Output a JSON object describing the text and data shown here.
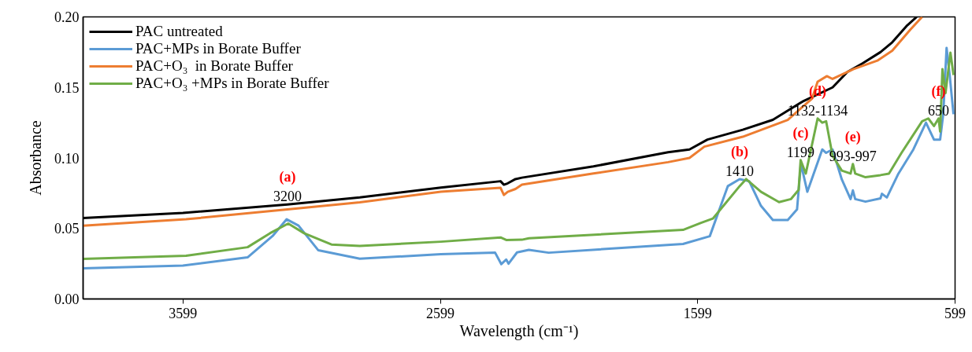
{
  "chart_data": {
    "type": "line",
    "xlabel": "Wavelength (cm⁻¹)",
    "ylabel": "Absorbance",
    "xlim": [
      3987,
      599
    ],
    "ylim": [
      0,
      0.2
    ],
    "xticks": [
      3599,
      2599,
      1599,
      599
    ],
    "yticks": [
      {
        "value": 0,
        "label": "0.00"
      },
      {
        "value": 0.05,
        "label": "0.05"
      },
      {
        "value": 0.1,
        "label": "0.10"
      },
      {
        "value": 0.15,
        "label": "0.15"
      },
      {
        "value": 0.2,
        "label": "0.20"
      }
    ],
    "grid": false,
    "legend": "top left",
    "marker": "none",
    "line_style": "solid",
    "series": [
      {
        "name": "PAC untreated",
        "color": "#000000",
        "x": [
          3987,
          3599,
          3193,
          2912,
          2597,
          2365,
          2352,
          2337,
          2307,
          2282,
          2004,
          1714,
          1631,
          1561,
          1424,
          1307,
          1191,
          1075,
          1017,
          959,
          889,
          843,
          785,
          748
        ],
        "values": [
          0.0574,
          0.061,
          0.067,
          0.072,
          0.079,
          0.0835,
          0.081,
          0.082,
          0.085,
          0.086,
          0.094,
          0.104,
          0.106,
          0.113,
          0.12,
          0.127,
          0.14,
          0.15,
          0.161,
          0.167,
          0.175,
          0.182,
          0.194,
          0.2
        ]
      },
      {
        "name": "PAC+MPs in Borate Buffer",
        "color": "#5b9bd5",
        "x": [
          3987,
          3599,
          3348,
          3251,
          3196,
          3150,
          3073,
          2912,
          2597,
          2386,
          2362,
          2343,
          2334,
          2301,
          2255,
          2178,
          1656,
          1552,
          1482,
          1436,
          1399,
          1353,
          1307,
          1249,
          1213,
          1198,
          1173,
          1115,
          1100,
          1075,
          1039,
          1005,
          996,
          987,
          947,
          889,
          883,
          864,
          819,
          761,
          712,
          681,
          657,
          645,
          632,
          620,
          611,
          605
        ],
        "values": [
          0.0217,
          0.0237,
          0.0295,
          0.0446,
          0.0565,
          0.052,
          0.0345,
          0.0286,
          0.0317,
          0.0328,
          0.0247,
          0.028,
          0.025,
          0.033,
          0.0348,
          0.0328,
          0.039,
          0.0445,
          0.08,
          0.085,
          0.0835,
          0.066,
          0.056,
          0.056,
          0.0635,
          0.096,
          0.076,
          0.106,
          0.1036,
          0.106,
          0.0847,
          0.0708,
          0.077,
          0.0708,
          0.069,
          0.0713,
          0.0746,
          0.0719,
          0.0889,
          0.106,
          0.125,
          0.113,
          0.113,
          0.131,
          0.178,
          0.159,
          0.142,
          0.131
        ]
      },
      {
        "name": "PAC+O₃  in Borate Buffer",
        "color": "#ed7d31",
        "x": [
          3987,
          3587,
          3193,
          2912,
          2597,
          2365,
          2352,
          2337,
          2307,
          2282,
          2004,
          1714,
          1631,
          1573,
          1424,
          1249,
          1155,
          1133,
          1097,
          1075,
          993,
          901,
          843,
          773,
          727
        ],
        "values": [
          0.052,
          0.0565,
          0.0635,
          0.0685,
          0.076,
          0.0788,
          0.0737,
          0.076,
          0.078,
          0.081,
          0.089,
          0.097,
          0.1,
          0.108,
          0.115,
          0.127,
          0.142,
          0.154,
          0.158,
          0.156,
          0.163,
          0.169,
          0.176,
          0.191,
          0.2
        ]
      },
      {
        "name": "PAC+O₃ +MPs in Borate Buffer",
        "color": "#70ad47",
        "x": [
          3987,
          3587,
          3348,
          3260,
          3190,
          3128,
          3022,
          2912,
          2597,
          2365,
          2343,
          2282,
          2255,
          1656,
          1586,
          1540,
          1436,
          1411,
          1353,
          1283,
          1237,
          1207,
          1199,
          1179,
          1133,
          1115,
          1100,
          1075,
          1039,
          1005,
          996,
          987,
          947,
          889,
          856,
          807,
          727,
          703,
          681,
          663,
          657,
          648,
          636,
          617,
          605
        ],
        "values": [
          0.0284,
          0.0306,
          0.0367,
          0.0467,
          0.0535,
          0.0466,
          0.0386,
          0.0376,
          0.0406,
          0.0436,
          0.0418,
          0.042,
          0.043,
          0.049,
          0.054,
          0.057,
          0.08,
          0.085,
          0.076,
          0.0687,
          0.0708,
          0.0773,
          0.0985,
          0.0889,
          0.128,
          0.125,
          0.126,
          0.1015,
          0.091,
          0.0889,
          0.0957,
          0.0889,
          0.0863,
          0.0878,
          0.0889,
          0.1036,
          0.126,
          0.128,
          0.1226,
          0.128,
          0.1187,
          0.163,
          0.146,
          0.1747,
          0.1588
        ]
      }
    ],
    "annotations": [
      {
        "text": "(a)\n3200",
        "x": 3193,
        "y": 0.067
      },
      {
        "text": "(b)\n1410",
        "x": 1436,
        "y": 0.085
      },
      {
        "text": "(c)\n1199",
        "x": 1199,
        "y": 0.0985
      },
      {
        "text": "(d)\n1132-1134",
        "x": 1133,
        "y": 0.128
      },
      {
        "text": "(e)\n993-997",
        "x": 996,
        "y": 0.0957
      },
      {
        "text": "(f)\n650",
        "x": 663,
        "y": 0.128
      }
    ]
  }
}
